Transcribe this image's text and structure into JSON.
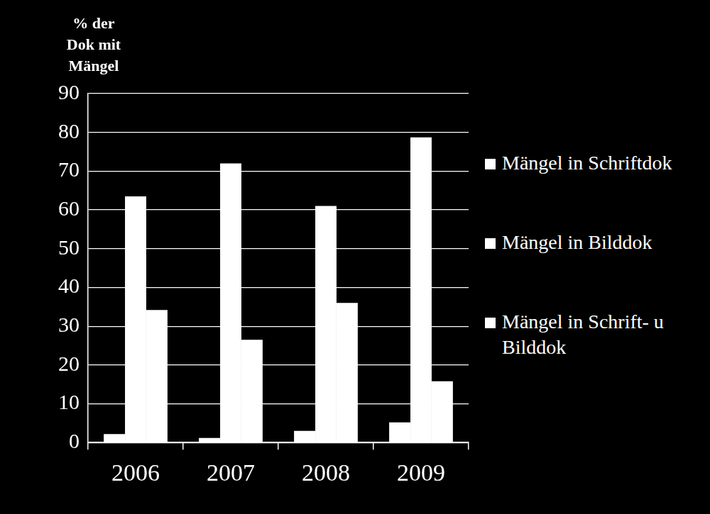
{
  "chart_data": {
    "type": "bar",
    "y_label": "% der Dok mit Mängel",
    "categories": [
      "2006",
      "2007",
      "2008",
      "2009"
    ],
    "series": [
      {
        "name": "Mängel in Schriftdok",
        "color": "#ffffff",
        "values": [
          2.2,
          1.2,
          3.0,
          5.2
        ]
      },
      {
        "name": "Mängel in Bilddok",
        "color": "#ffffff",
        "values": [
          63.5,
          72.0,
          61.0,
          78.7
        ]
      },
      {
        "name": "Mängel in Schrift- u Bilddok",
        "color": "#ffffff",
        "values": [
          34.2,
          26.5,
          36.0,
          15.8
        ]
      }
    ],
    "ylim": [
      0,
      90
    ],
    "yticks": [
      0,
      10,
      20,
      30,
      40,
      50,
      60,
      70,
      80,
      90
    ],
    "grid": true,
    "legend": "right"
  }
}
